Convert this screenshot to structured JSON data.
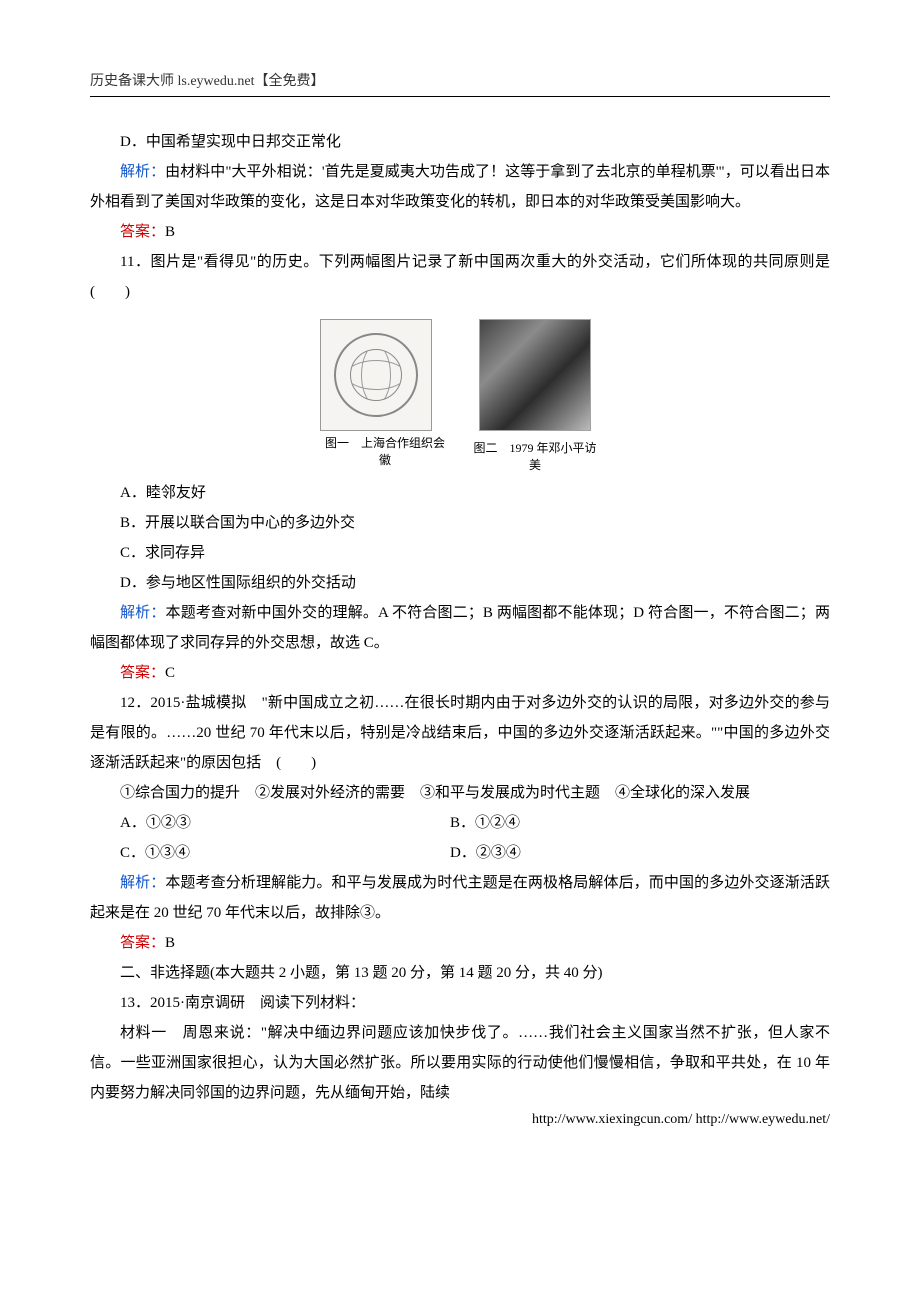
{
  "header": "历史备课大师  ls.eywedu.net【全免费】",
  "q10": {
    "optD": "D．中国希望实现中日邦交正常化",
    "jiexi_label": "解析：",
    "jiexi": "由材料中\"大平外相说：'首先是夏威夷大功告成了！这等于拿到了去北京的单程机票'\"，可以看出日本外相看到了美国对华政策的变化，这是日本对华政策变化的转机，即日本的对华政策受美国影响大。",
    "daan_label": "答案：",
    "daan": "B"
  },
  "q11": {
    "stem": "11．图片是\"看得见\"的历史。下列两幅图片记录了新中国两次重大的外交活动，它们所体现的共同原则是(　　)",
    "img1_caption": "图一　上海合作组织会徽",
    "img2_caption": "图二　1979 年邓小平访美",
    "optA": "A．睦邻友好",
    "optB": "B．开展以联合国为中心的多边外交",
    "optC": "C．求同存异",
    "optD": "D．参与地区性国际组织的外交括动",
    "jiexi_label": "解析：",
    "jiexi": "本题考查对新中国外交的理解。A 不符合图二；B 两幅图都不能体现；D 符合图一，不符合图二；两幅图都体现了求同存异的外交思想，故选 C。",
    "daan_label": "答案：",
    "daan": "C"
  },
  "q12": {
    "stem": "12．2015·盐城模拟　\"新中国成立之初……在很长时期内由于对多边外交的认识的局限，对多边外交的参与是有限的。……20 世纪 70 年代末以后，特别是冷战结束后，中国的多边外交逐渐活跃起来。\"\"中国的多边外交逐渐活跃起来\"的原因包括　(　　)",
    "statements": "①综合国力的提升　②发展对外经济的需要　③和平与发展成为时代主题　④全球化的深入发展",
    "optA": "A．①②③",
    "optB": "B．①②④",
    "optC": "C．①③④",
    "optD": "D．②③④",
    "jiexi_label": "解析：",
    "jiexi": "本题考查分析理解能力。和平与发展成为时代主题是在两极格局解体后，而中国的多边外交逐渐活跃起来是在 20 世纪 70 年代末以后，故排除③。",
    "daan_label": "答案：",
    "daan": "B"
  },
  "section2": "二、非选择题(本大题共 2 小题，第 13 题 20 分，第 14 题 20 分，共 40 分)",
  "q13": {
    "head": "13．2015·南京调研　阅读下列材料：",
    "mat1": "材料一　周恩来说：\"解决中缅边界问题应该加快步伐了。……我们社会主义国家当然不扩张，但人家不信。一些亚洲国家很担心，认为大国必然扩张。所以要用实际的行动使他们慢慢相信，争取和平共处，在 10 年内要努力解决同邻国的边界问题，先从缅甸开始，陆续"
  },
  "footer": "http://www.xiexingcun.com/ http://www.eywedu.net/"
}
